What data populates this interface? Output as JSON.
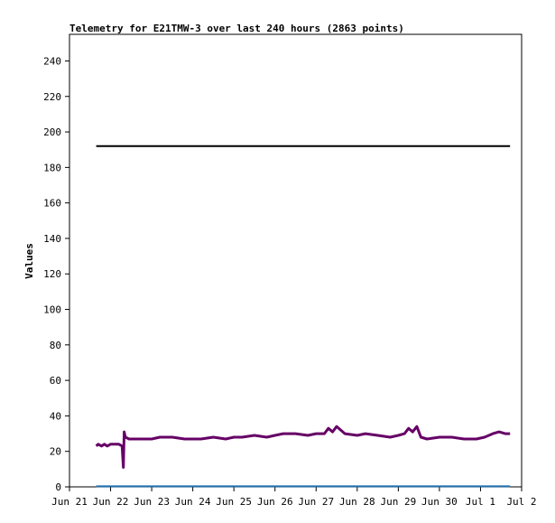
{
  "chart_data": {
    "type": "line",
    "title": "Telemetry for E21TMW-3 over last 240 hours (2863 points)",
    "xlabel": "",
    "ylabel": "Values",
    "ylim": [
      0,
      255
    ],
    "yticks": [
      0,
      20,
      40,
      60,
      80,
      100,
      120,
      140,
      160,
      180,
      200,
      220,
      240
    ],
    "x_ticks": [
      {
        "day": 0,
        "label": "Jun 21"
      },
      {
        "day": 1,
        "label": "Jun 22"
      },
      {
        "day": 2,
        "label": "Jun 23"
      },
      {
        "day": 3,
        "label": "Jun 24"
      },
      {
        "day": 4,
        "label": "Jun 25"
      },
      {
        "day": 5,
        "label": "Jun 26"
      },
      {
        "day": 6,
        "label": "Jun 27"
      },
      {
        "day": 7,
        "label": "Jun 28"
      },
      {
        "day": 8,
        "label": "Jun 29"
      },
      {
        "day": 9,
        "label": "Jun 30"
      },
      {
        "day": 10,
        "label": "Jul 1"
      },
      {
        "day": 11,
        "label": "Jul 2"
      }
    ],
    "xlim_days": [
      0,
      11
    ],
    "grid": false,
    "series": [
      {
        "color": "#000000",
        "line_width": 2,
        "points": [
          [
            0.65,
            192
          ],
          [
            10.72,
            192
          ]
        ]
      },
      {
        "color": "#660066",
        "line_width": 3,
        "points": [
          [
            0.65,
            23
          ],
          [
            0.7,
            24
          ],
          [
            0.78,
            23
          ],
          [
            0.85,
            24
          ],
          [
            0.92,
            23
          ],
          [
            1.0,
            24
          ],
          [
            1.1,
            24
          ],
          [
            1.2,
            24
          ],
          [
            1.28,
            23
          ],
          [
            1.31,
            11
          ],
          [
            1.33,
            31
          ],
          [
            1.36,
            28
          ],
          [
            1.45,
            27
          ],
          [
            1.6,
            27
          ],
          [
            1.8,
            27
          ],
          [
            2.0,
            27
          ],
          [
            2.2,
            28
          ],
          [
            2.5,
            28
          ],
          [
            2.8,
            27
          ],
          [
            3.0,
            27
          ],
          [
            3.2,
            27
          ],
          [
            3.5,
            28
          ],
          [
            3.8,
            27
          ],
          [
            4.0,
            28
          ],
          [
            4.2,
            28
          ],
          [
            4.5,
            29
          ],
          [
            4.8,
            28
          ],
          [
            5.0,
            29
          ],
          [
            5.2,
            30
          ],
          [
            5.5,
            30
          ],
          [
            5.8,
            29
          ],
          [
            6.0,
            30
          ],
          [
            6.2,
            30
          ],
          [
            6.3,
            33
          ],
          [
            6.4,
            31
          ],
          [
            6.5,
            34
          ],
          [
            6.6,
            32
          ],
          [
            6.7,
            30
          ],
          [
            7.0,
            29
          ],
          [
            7.2,
            30
          ],
          [
            7.5,
            29
          ],
          [
            7.8,
            28
          ],
          [
            8.0,
            29
          ],
          [
            8.15,
            30
          ],
          [
            8.25,
            33
          ],
          [
            8.35,
            31
          ],
          [
            8.45,
            34
          ],
          [
            8.55,
            28
          ],
          [
            8.7,
            27
          ],
          [
            9.0,
            28
          ],
          [
            9.3,
            28
          ],
          [
            9.6,
            27
          ],
          [
            9.9,
            27
          ],
          [
            10.1,
            28
          ],
          [
            10.3,
            30
          ],
          [
            10.45,
            31
          ],
          [
            10.6,
            30
          ],
          [
            10.72,
            30
          ]
        ]
      },
      {
        "color": "#1f6fb0",
        "line_width": 2,
        "points": [
          [
            0.65,
            0.3
          ],
          [
            10.72,
            0.3
          ]
        ]
      }
    ]
  }
}
